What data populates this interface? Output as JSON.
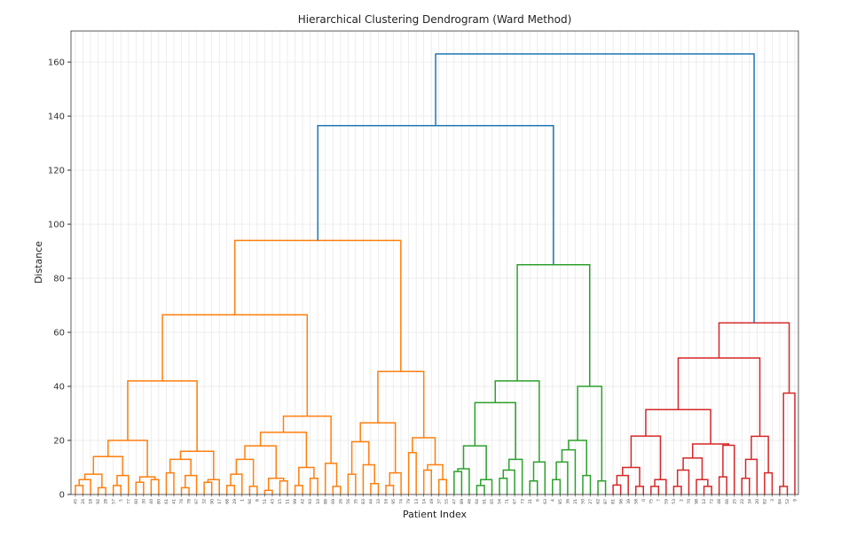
{
  "chart_data": {
    "type": "dendrogram",
    "title": "Hierarchical Clustering Dendrogram (Ward Method)",
    "xlabel": "Patient Index",
    "ylabel": "Distance",
    "ylim": [
      0,
      171.5
    ],
    "yticks": [
      0,
      20,
      40,
      60,
      80,
      100,
      120,
      140,
      160
    ],
    "grid": true,
    "above_threshold_color": "#1f77b4",
    "cluster_colors": [
      "#ff7f0e",
      "#2ca02c",
      "#d62728"
    ],
    "tree": [
      163,
      [
        136.5,
        [
          94,
          [
            66.5,
            [
              42,
              [
                20,
                [
                  14,
                  [
                    7.5,
                    [
                      5.5,
                      [
                        3.3,
                        "45",
                        "24"
                      ],
                      "18"
                    ],
                    [
                      2.5,
                      "92",
                      "28"
                    ]
                  ],
                  [
                    7,
                    [
                      3.3,
                      "57",
                      "5"
                    ],
                    "77"
                  ]
                ],
                [
                  6.5,
                  [
                    4.5,
                    "60",
                    "30"
                  ],
                  [
                    5.5,
                    "40",
                    "80"
                  ]
                ]
              ],
              [
                16,
                [
                  13,
                  [
                    8,
                    "61",
                    "41"
                  ],
                  [
                    7,
                    [
                      2.5,
                      "76",
                      "78"
                    ],
                    "97"
                  ]
                ],
                [
                  5.5,
                  [
                    4.5,
                    "32",
                    "90"
                  ],
                  "17"
                ]
              ]
            ],
            [
              29,
              [
                23,
                [
                  18,
                  [
                    13,
                    [
                      7.5,
                      [
                        3.3,
                        "68",
                        "29"
                      ],
                      "1"
                    ],
                    [
                      3,
                      "94",
                      "8"
                    ]
                  ],
                  [
                    6,
                    [
                      1.5,
                      "51",
                      "43"
                    ],
                    [
                      5,
                      "15",
                      "11"
                    ]
                  ]
                ],
                [
                  10,
                  [
                    3.3,
                    "99",
                    "42"
                  ],
                  [
                    6,
                    "93",
                    "10"
                  ]
                ]
              ],
              [
                11.5,
                "88",
                [
                  3,
                  "69",
                  "26"
                ]
              ]
            ]
          ],
          [
            45.5,
            [
              26.5,
              [
                19.5,
                [
                  7.5,
                  "56",
                  "35"
                ],
                [
                  11,
                  "83",
                  [
                    4,
                    "44",
                    "33"
                  ]
                ]
              ],
              [
                8,
                [
                  3.3,
                  "16",
                  "95"
                ],
                "74"
              ]
            ],
            [
              21,
              [
                15.5,
                "79",
                "13"
              ],
              [
                11,
                [
                  9,
                  "14",
                  "49"
                ],
                [
                  5.5,
                  "37",
                  "55"
                ]
              ]
            ]
          ]
        ],
        [
          85,
          [
            42,
            [
              34,
              [
                18,
                [
                  9.5,
                  [
                    8.5,
                    "47",
                    "89"
                  ],
                  "46"
                ],
                [
                  5.5,
                  [
                    3.3,
                    "64",
                    "91"
                  ],
                  "65"
                ]
              ],
              [
                13,
                [
                  9,
                  [
                    6,
                    "54",
                    "71"
                  ],
                  "67"
                ],
                "73"
              ]
            ],
            [
              12,
              [
                5,
                "31",
                "6"
              ],
              "63"
            ]
          ],
          [
            40,
            [
              20,
              [
                16.5,
                [
                  12,
                  [
                    5.5,
                    "4",
                    "85"
                  ],
                  "36"
                ],
                "21"
              ],
              [
                7,
                "50",
                "27"
              ]
            ],
            [
              5,
              "62",
              "87"
            ]
          ]
        ]
      ],
      [
        63.5,
        [
          50.5,
          [
            31.4,
            [
              21.6,
              [
                10,
                [
                  7,
                  [
                    3.5,
                    "81",
                    "96"
                  ],
                  "39"
                ],
                [
                  3,
                  "58",
                  "0"
                ]
              ],
              [
                5.5,
                [
                  3,
                  "75",
                  "7"
                ],
                "59"
              ]
            ],
            [
              18.7,
              [
                13.5,
                [
                  9,
                  [
                    3,
                    "53",
                    "2"
                  ],
                  "70"
                ],
                [
                  5.5,
                  "98",
                  [
                    3,
                    "12",
                    "72"
                  ]
                ]
              ],
              [
                18.2,
                [
                  6.5,
                  "48",
                  "66"
                ],
                "25"
              ]
            ]
          ],
          [
            21.5,
            [
              13,
              [
                6,
                "22",
                "34"
              ],
              "20"
            ],
            [
              8,
              "82",
              "3"
            ]
          ]
        ],
        [
          37.5,
          [
            3,
            "84",
            "52"
          ],
          "9"
        ]
      ]
    ]
  }
}
